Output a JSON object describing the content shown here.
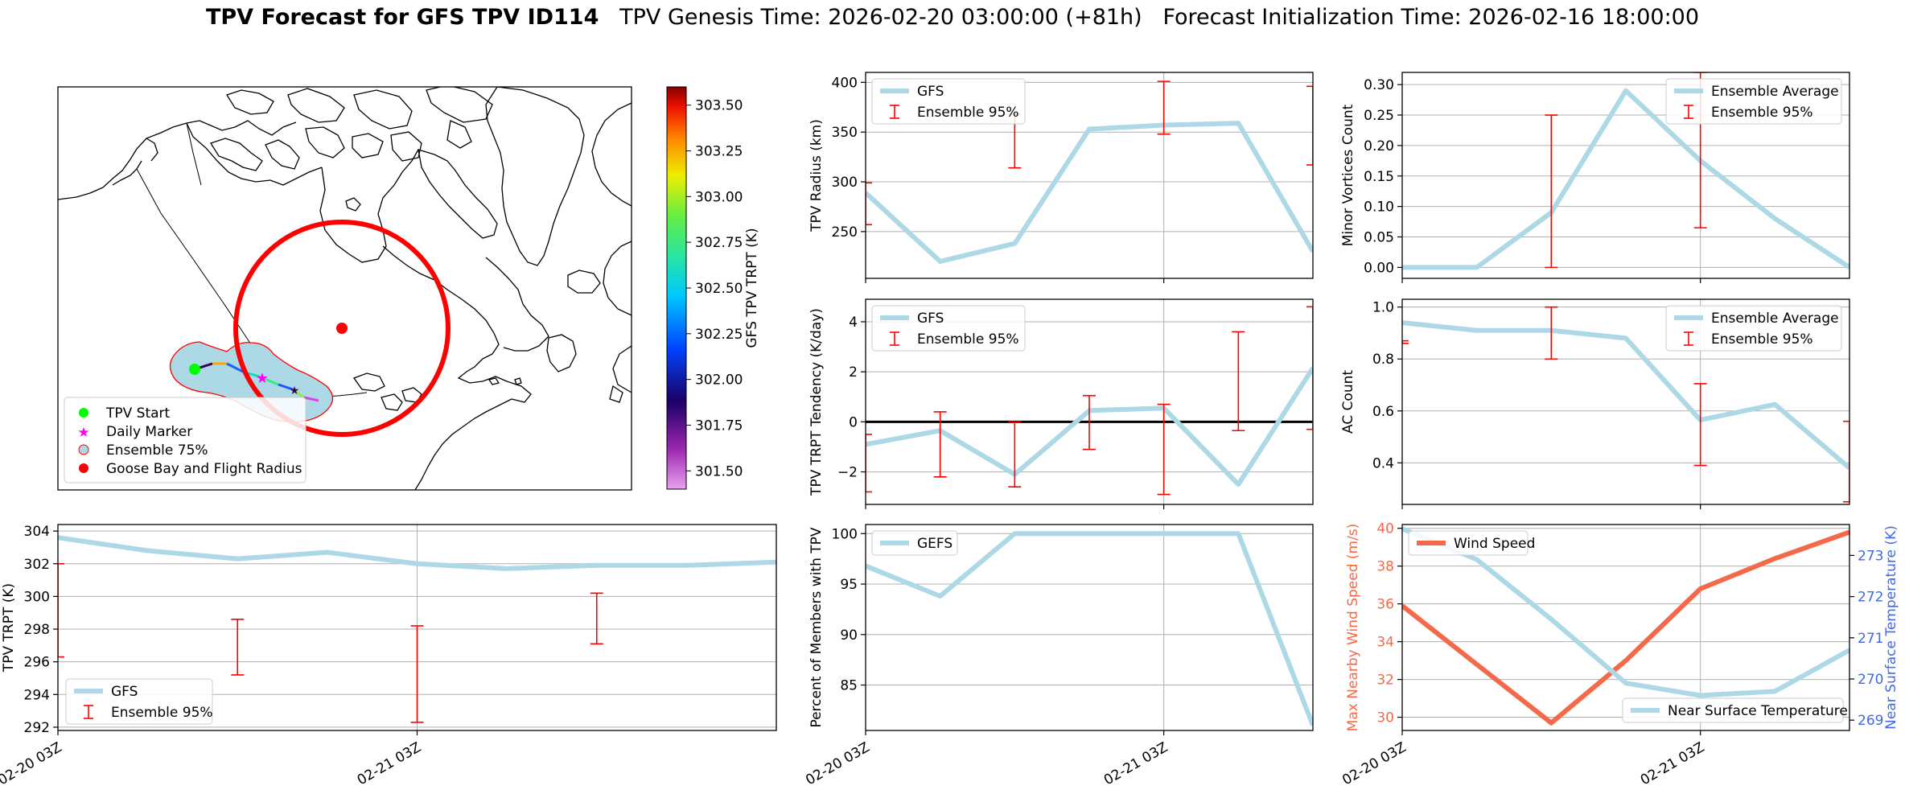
{
  "title": {
    "main": "TPV Forecast for GFS TPV ID114",
    "genesis": "TPV Genesis Time: 2026-02-20 03:00:00 (+81h)",
    "init": "Forecast Initialization Time: 2026-02-16 18:00:00"
  },
  "colors": {
    "line": "#add8e6",
    "error": "#ff0000",
    "wind": "#f4694a",
    "temp_axis": "#4169e1",
    "zero": "#000000"
  },
  "map": {
    "colorbar": {
      "label": "GFS TPV TRPT (K)",
      "min": 301.4,
      "max": 303.6,
      "ticks": [
        "303.50",
        "303.25",
        "303.00",
        "302.75",
        "302.50",
        "302.25",
        "302.00",
        "301.75",
        "301.50"
      ]
    },
    "legend": [
      "TPV Start",
      "Daily Marker",
      "Ensemble 75%",
      "Goose Bay and Flight Radius"
    ]
  },
  "chart_data": [
    {
      "id": "trpt",
      "type": "line",
      "ylabel": "TPV TRPT (K)",
      "ylim": [
        291.8,
        304.4
      ],
      "yticks": [
        "304",
        "302",
        "300",
        "298",
        "296",
        "294",
        "292"
      ],
      "ytick_values": [
        304,
        302,
        300,
        298,
        296,
        294,
        292
      ],
      "xlabels": [
        "02-20 03Z",
        "02-21 03Z"
      ],
      "xtick_positions": [
        0,
        4
      ],
      "xlim": [
        0,
        8
      ],
      "series": [
        {
          "name": "GFS",
          "x": [
            0,
            1,
            2,
            3,
            4,
            5,
            6,
            7,
            8
          ],
          "values": [
            303.6,
            302.8,
            302.3,
            302.7,
            302.0,
            301.7,
            301.9,
            301.9,
            302.1
          ]
        }
      ],
      "errorbars": {
        "name": "Ensemble 95%",
        "x": [
          0,
          2,
          4,
          6
        ],
        "low": [
          296.3,
          295.2,
          292.3,
          297.1
        ],
        "high": [
          302.0,
          298.6,
          298.2,
          300.2
        ]
      },
      "legend": [
        "GFS",
        "Ensemble 95%"
      ]
    },
    {
      "id": "radius",
      "type": "line",
      "ylabel": "TPV Radius (km)",
      "ylim": [
        203,
        410
      ],
      "yticks": [
        "400",
        "350",
        "300",
        "250"
      ],
      "ytick_values": [
        400,
        350,
        300,
        250
      ],
      "xlabels": [],
      "xtick_positions": [
        0,
        4
      ],
      "xlim": [
        0,
        6
      ],
      "series": [
        {
          "name": "GFS",
          "x": [
            0,
            1,
            2,
            3,
            4,
            5,
            6
          ],
          "values": [
            289,
            220,
            238,
            353,
            357,
            359,
            230
          ]
        }
      ],
      "errorbars": {
        "name": "Ensemble 95%",
        "x": [
          0,
          2,
          4,
          6
        ],
        "low": [
          257,
          314,
          348,
          317
        ],
        "high": [
          299,
          368,
          401,
          396
        ]
      },
      "legend": [
        "GFS",
        "Ensemble 95%"
      ]
    },
    {
      "id": "minor",
      "type": "line",
      "ylabel": "Minor Vortices Count",
      "ylim": [
        -0.018,
        0.32
      ],
      "yticks": [
        "0.30",
        "0.25",
        "0.20",
        "0.15",
        "0.10",
        "0.05",
        "0.00"
      ],
      "ytick_values": [
        0.3,
        0.25,
        0.2,
        0.15,
        0.1,
        0.05,
        0.0
      ],
      "xlabels": [],
      "xtick_positions": [
        0,
        4
      ],
      "xlim": [
        0,
        6
      ],
      "series": [
        {
          "name": "Ensemble Average",
          "x": [
            0,
            1,
            2,
            3,
            4,
            5,
            6
          ],
          "values": [
            0.0,
            0.0,
            0.09,
            0.29,
            0.175,
            0.08,
            0.0
          ]
        }
      ],
      "errorbars": {
        "name": "Ensemble 95%",
        "x": [
          2,
          4
        ],
        "low": [
          0.0,
          0.065
        ],
        "high": [
          0.25,
          0.32
        ]
      },
      "legend": [
        "Ensemble Average",
        "Ensemble 95%"
      ]
    },
    {
      "id": "tendency",
      "type": "line",
      "ylabel": "TPV TRPT Tendency (K/day)",
      "ylim": [
        -3.3,
        4.9
      ],
      "yticks": [
        "4",
        "2",
        "0",
        "−2"
      ],
      "ytick_values": [
        4,
        2,
        0,
        -2
      ],
      "xlabels": [],
      "xtick_positions": [
        0,
        4
      ],
      "xlim": [
        0,
        6
      ],
      "zeroline": true,
      "series": [
        {
          "name": "GFS",
          "x": [
            0,
            1,
            2,
            3,
            4,
            5,
            6
          ],
          "values": [
            -0.9,
            -0.35,
            -2.1,
            0.45,
            0.55,
            -2.5,
            2.15
          ]
        }
      ],
      "errorbars": {
        "name": "Ensemble 95%",
        "x": [
          0,
          1,
          2,
          3,
          4,
          5,
          6
        ],
        "low": [
          -2.8,
          -2.2,
          -2.6,
          -1.1,
          -2.9,
          -0.35,
          -0.3
        ],
        "high": [
          -0.5,
          0.4,
          0.0,
          1.05,
          0.7,
          3.6,
          4.6
        ]
      },
      "legend": [
        "GFS",
        "Ensemble 95%"
      ]
    },
    {
      "id": "ac",
      "type": "line",
      "ylabel": "AC Count",
      "ylim": [
        0.24,
        1.03
      ],
      "yticks": [
        "1.0",
        "0.8",
        "0.6",
        "0.4"
      ],
      "ytick_values": [
        1.0,
        0.8,
        0.6,
        0.4
      ],
      "xlabels": [],
      "xtick_positions": [
        0,
        4
      ],
      "xlim": [
        0,
        6
      ],
      "series": [
        {
          "name": "Ensemble Average",
          "x": [
            0,
            1,
            2,
            3,
            4,
            5,
            6
          ],
          "values": [
            0.94,
            0.91,
            0.91,
            0.88,
            0.565,
            0.625,
            0.38
          ]
        }
      ],
      "errorbars": {
        "name": "Ensemble 95%",
        "x": [
          0,
          2,
          4,
          6
        ],
        "low": [
          0.86,
          0.8,
          0.39,
          0.25
        ],
        "high": [
          0.87,
          1.0,
          0.705,
          0.56
        ]
      },
      "legend": [
        "Ensemble Average",
        "Ensemble 95%"
      ]
    },
    {
      "id": "members",
      "type": "line",
      "ylabel": "Percent of Members with TPV",
      "ylim": [
        80.5,
        100.9
      ],
      "yticks": [
        "100",
        "95",
        "90",
        "85"
      ],
      "ytick_values": [
        100,
        95,
        90,
        85
      ],
      "xlabels": [
        "02-20 03Z",
        "02-21 03Z"
      ],
      "xtick_positions": [
        0,
        4
      ],
      "xlim": [
        0,
        6
      ],
      "series": [
        {
          "name": "GEFS",
          "x": [
            0,
            1,
            2,
            3,
            4,
            5,
            6
          ],
          "values": [
            96.8,
            93.8,
            100,
            100,
            100,
            100,
            81.0
          ]
        }
      ],
      "legend": [
        "GEFS"
      ]
    },
    {
      "id": "wind",
      "type": "dual-line",
      "ylabel": "Max Nearby Wind Speed (m/s)",
      "ylim": [
        29.3,
        40.2
      ],
      "yticks": [
        "40",
        "38",
        "36",
        "34",
        "32",
        "30"
      ],
      "ytick_values": [
        40,
        38,
        36,
        34,
        32,
        30
      ],
      "y2label": "Near Surface Temperature (K)",
      "y2lim": [
        268.75,
        273.75
      ],
      "y2ticks": [
        "273",
        "272",
        "271",
        "270",
        "269"
      ],
      "y2tick_values": [
        273,
        272,
        271,
        270,
        269
      ],
      "xlabels": [
        "02-20 03Z",
        "02-21 03Z"
      ],
      "xtick_positions": [
        0,
        4
      ],
      "xlim": [
        0,
        6
      ],
      "series": [
        {
          "name": "Wind Speed",
          "axis": "left",
          "x": [
            0,
            1,
            2,
            3,
            4,
            5,
            6
          ],
          "values": [
            35.9,
            32.8,
            29.7,
            33.0,
            36.8,
            38.4,
            39.8
          ]
        },
        {
          "name": "Near Surface Temperature",
          "axis": "right",
          "x": [
            0,
            1,
            2,
            3,
            4,
            5,
            6
          ],
          "values": [
            273.65,
            272.9,
            271.45,
            269.9,
            269.6,
            269.7,
            270.7
          ]
        }
      ],
      "legend": [
        "Wind Speed",
        "Near Surface Temperature"
      ]
    }
  ]
}
